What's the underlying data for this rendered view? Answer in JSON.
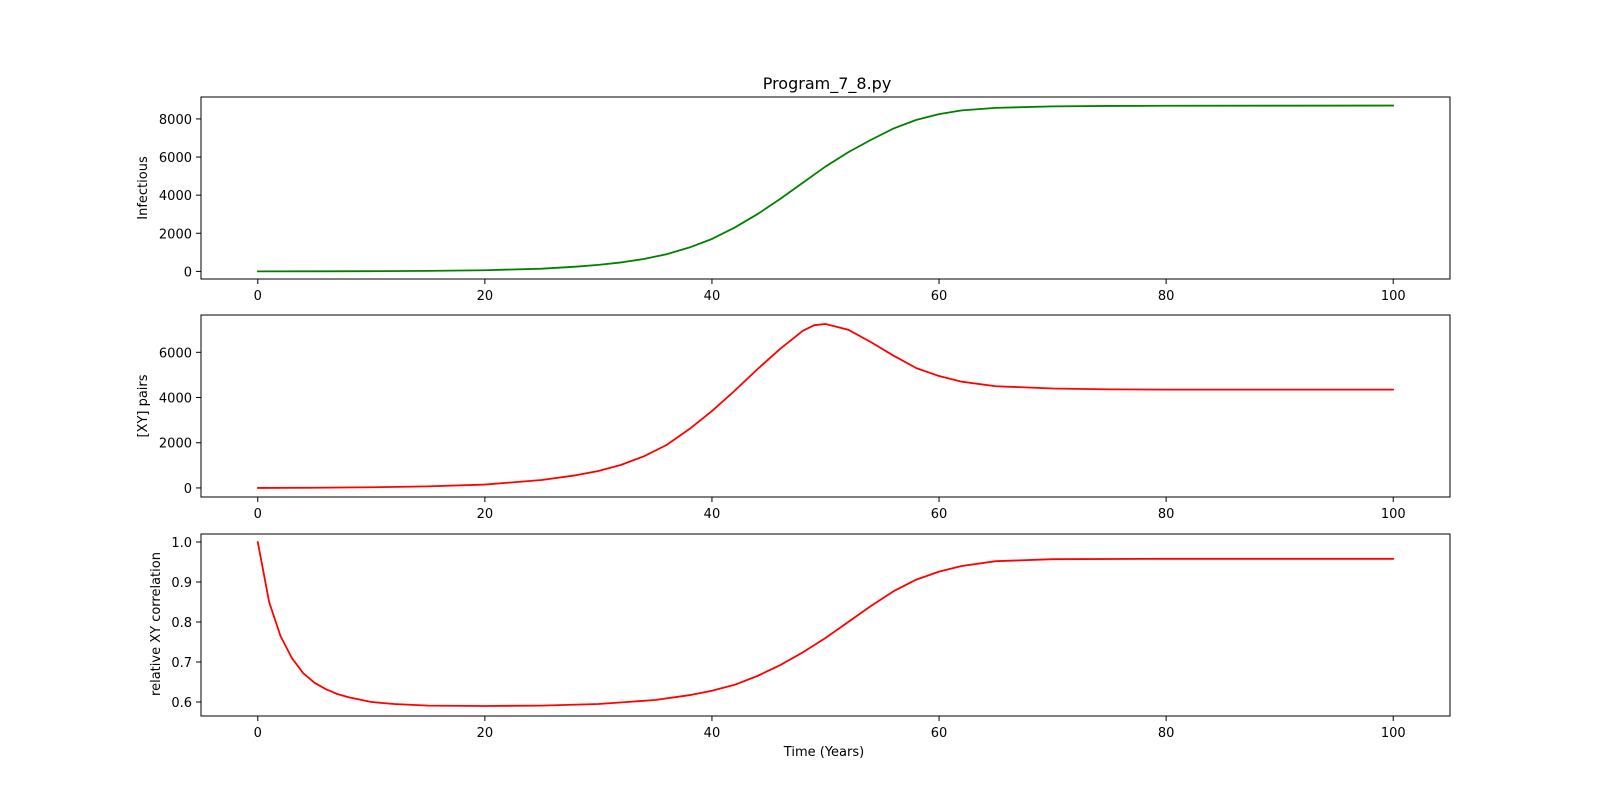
{
  "chart_data": [
    {
      "type": "line",
      "title": "Program_7_8.py",
      "xlabel": "",
      "ylabel": "Infectious",
      "xlim": [
        -5,
        105
      ],
      "ylim": [
        -400,
        9150
      ],
      "xticks": [
        0,
        20,
        40,
        60,
        80,
        100
      ],
      "yticks": [
        0,
        2000,
        4000,
        6000,
        8000
      ],
      "grid": false,
      "series": [
        {
          "color": "#008000",
          "x": [
            0,
            5,
            10,
            15,
            20,
            25,
            28,
            30,
            32,
            34,
            36,
            38,
            40,
            42,
            44,
            46,
            48,
            50,
            52,
            54,
            56,
            58,
            60,
            62,
            65,
            70,
            75,
            80,
            90,
            100
          ],
          "y": [
            0,
            3,
            10,
            25,
            60,
            140,
            245,
            340,
            470,
            650,
            900,
            1250,
            1700,
            2300,
            3000,
            3800,
            4650,
            5500,
            6250,
            6900,
            7500,
            7950,
            8250,
            8450,
            8580,
            8660,
            8680,
            8690,
            8695,
            8700
          ]
        }
      ]
    },
    {
      "type": "line",
      "title": "",
      "xlabel": "",
      "ylabel": "[XY] pairs",
      "xlim": [
        -5,
        105
      ],
      "ylim": [
        -400,
        7650
      ],
      "xticks": [
        0,
        20,
        40,
        60,
        80,
        100
      ],
      "yticks": [
        0,
        2000,
        4000,
        6000
      ],
      "grid": false,
      "series": [
        {
          "color": "#ff0000",
          "x": [
            0,
            5,
            10,
            15,
            20,
            25,
            28,
            30,
            32,
            34,
            36,
            38,
            40,
            42,
            44,
            46,
            48,
            49,
            50,
            52,
            54,
            56,
            58,
            60,
            62,
            65,
            70,
            75,
            80,
            90,
            100
          ],
          "y": [
            0,
            10,
            30,
            70,
            150,
            350,
            560,
            750,
            1020,
            1400,
            1900,
            2600,
            3400,
            4300,
            5250,
            6150,
            6950,
            7200,
            7250,
            7000,
            6450,
            5850,
            5300,
            4950,
            4700,
            4500,
            4400,
            4360,
            4350,
            4350,
            4350
          ]
        }
      ]
    },
    {
      "type": "line",
      "title": "",
      "xlabel": "Time (Years)",
      "ylabel": "relative XY correlation",
      "xlim": [
        -5,
        105
      ],
      "ylim": [
        0.565,
        1.02
      ],
      "xticks": [
        0,
        20,
        40,
        60,
        80,
        100
      ],
      "yticks": [
        0.6,
        0.7,
        0.8,
        0.9,
        1.0
      ],
      "ytick_labels": [
        "0.6",
        "0.7",
        "0.8",
        "0.9",
        "1.0"
      ],
      "grid": false,
      "series": [
        {
          "color": "#ff0000",
          "x": [
            0,
            1,
            2,
            3,
            4,
            5,
            6,
            7,
            8,
            10,
            12,
            15,
            20,
            25,
            30,
            35,
            38,
            40,
            42,
            44,
            46,
            48,
            50,
            52,
            54,
            56,
            58,
            60,
            62,
            65,
            70,
            80,
            100
          ],
          "y": [
            1.0,
            0.85,
            0.765,
            0.71,
            0.672,
            0.648,
            0.632,
            0.62,
            0.612,
            0.6,
            0.595,
            0.591,
            0.59,
            0.591,
            0.595,
            0.605,
            0.617,
            0.628,
            0.643,
            0.665,
            0.692,
            0.724,
            0.76,
            0.8,
            0.84,
            0.877,
            0.906,
            0.926,
            0.94,
            0.952,
            0.957,
            0.958,
            0.958
          ]
        }
      ]
    }
  ]
}
